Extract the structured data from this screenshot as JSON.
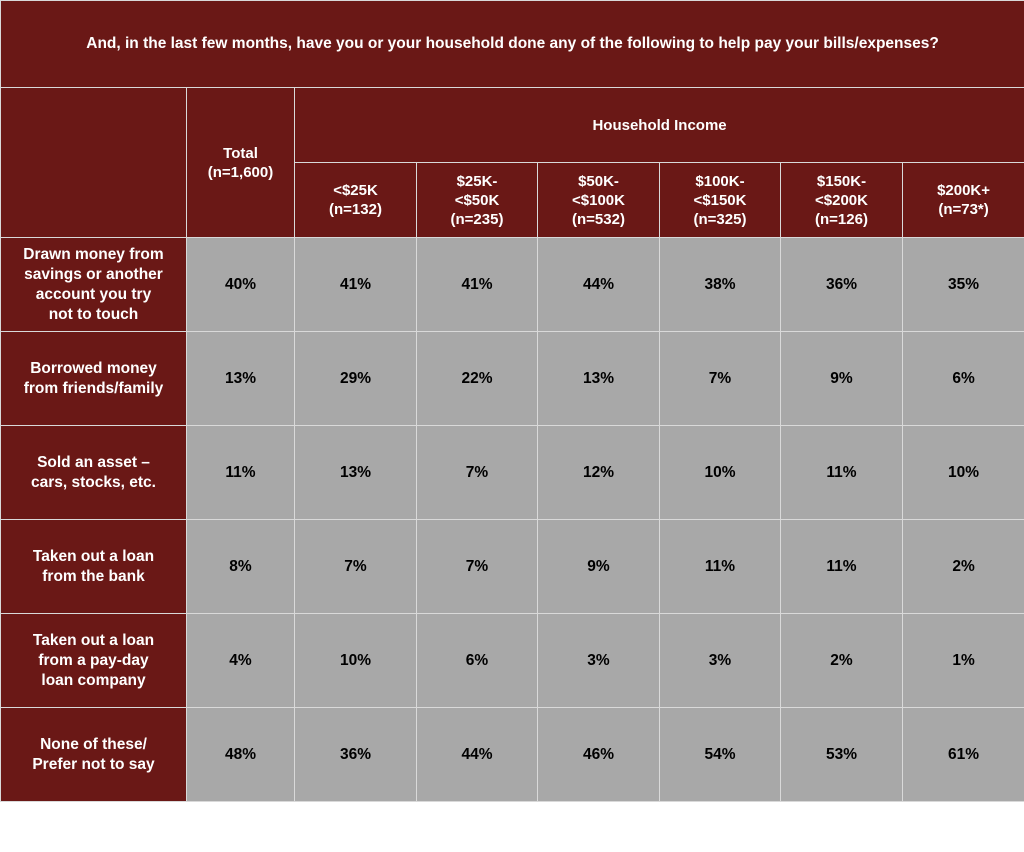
{
  "chart_data": {
    "type": "table",
    "title": "And, in the last few months, have you or your household done any of the following to help pay your bills/expenses?",
    "group_header": "Household Income",
    "total_column": {
      "label": "Total",
      "n": "(n=1,600)"
    },
    "income_columns": [
      {
        "label": "<$25K",
        "n": "(n=132)"
      },
      {
        "label": "$25K-\n<$50K",
        "n": "(n=235)"
      },
      {
        "label": "$50K-\n<$100K",
        "n": "(n=532)"
      },
      {
        "label": "$100K-\n<$150K",
        "n": "(n=325)"
      },
      {
        "label": "$150K-\n<$200K",
        "n": "(n=126)"
      },
      {
        "label": "$200K+",
        "n": "(n=73*)"
      }
    ],
    "rows": [
      {
        "label": "Drawn money from\nsavings or another\naccount you try\nnot to touch",
        "values": [
          "40%",
          "41%",
          "41%",
          "44%",
          "38%",
          "36%",
          "35%"
        ]
      },
      {
        "label": "Borrowed money\nfrom friends/family",
        "values": [
          "13%",
          "29%",
          "22%",
          "13%",
          "7%",
          "9%",
          "6%"
        ]
      },
      {
        "label": "Sold an asset –\ncars, stocks, etc.",
        "values": [
          "11%",
          "13%",
          "7%",
          "12%",
          "10%",
          "11%",
          "10%"
        ]
      },
      {
        "label": "Taken out a loan\nfrom the bank",
        "values": [
          "8%",
          "7%",
          "7%",
          "9%",
          "11%",
          "11%",
          "2%"
        ]
      },
      {
        "label": "Taken out a loan\nfrom a pay-day\nloan company",
        "values": [
          "4%",
          "10%",
          "6%",
          "3%",
          "3%",
          "2%",
          "1%"
        ]
      },
      {
        "label": "None of these/\nPrefer not to say",
        "values": [
          "48%",
          "36%",
          "44%",
          "46%",
          "54%",
          "53%",
          "61%"
        ]
      }
    ],
    "colors": {
      "header_bg": "#6a1816",
      "cell_bg": "#a8a8a8",
      "grid": "#d9d9d9"
    }
  }
}
